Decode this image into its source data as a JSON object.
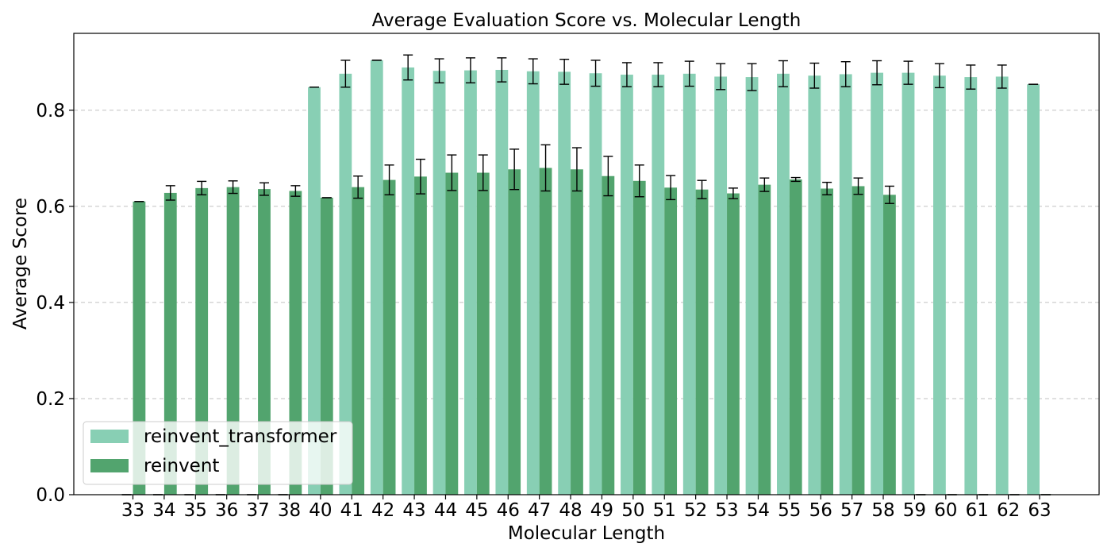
{
  "chart_data": {
    "type": "bar",
    "title": "Average Evaluation Score vs. Molecular Length",
    "xlabel": "Molecular Length",
    "ylabel": "Average Score",
    "ylim": [
      0,
      0.96
    ],
    "yticks": [
      "0.0",
      "0.2",
      "0.4",
      "0.6",
      "0.8"
    ],
    "grid": "horizontal dashed",
    "legend_position": "lower-left",
    "categories": [
      "33",
      "34",
      "35",
      "36",
      "37",
      "38",
      "40",
      "41",
      "42",
      "43",
      "44",
      "45",
      "46",
      "47",
      "48",
      "49",
      "50",
      "51",
      "52",
      "53",
      "54",
      "55",
      "56",
      "57",
      "58",
      "59",
      "60",
      "61",
      "62",
      "63"
    ],
    "series": [
      {
        "name": "reinvent_transformer",
        "color": "#88cfb4",
        "values": [
          0,
          0,
          0,
          0,
          0,
          0,
          0.848,
          0.876,
          0.904,
          0.889,
          0.882,
          0.883,
          0.884,
          0.881,
          0.88,
          0.877,
          0.874,
          0.874,
          0.876,
          0.87,
          0.869,
          0.876,
          0.872,
          0.875,
          0.878,
          0.878,
          0.872,
          0.869,
          0.87,
          0.854
        ],
        "errors": [
          0,
          0,
          0,
          0,
          0,
          0,
          0,
          0.028,
          0,
          0.026,
          0.025,
          0.026,
          0.025,
          0.026,
          0.026,
          0.027,
          0.025,
          0.025,
          0.026,
          0.027,
          0.028,
          0.027,
          0.026,
          0.026,
          0.025,
          0.024,
          0.025,
          0.025,
          0.024,
          0
        ]
      },
      {
        "name": "reinvent",
        "color": "#52a46e",
        "values": [
          0.61,
          0.628,
          0.638,
          0.64,
          0.636,
          0.632,
          0.618,
          0.64,
          0.655,
          0.662,
          0.67,
          0.67,
          0.677,
          0.68,
          0.677,
          0.663,
          0.653,
          0.639,
          0.635,
          0.627,
          0.645,
          0.656,
          0.637,
          0.642,
          0.624,
          0,
          0,
          0,
          0,
          0
        ],
        "errors": [
          0,
          0.015,
          0.014,
          0.013,
          0.013,
          0.011,
          0,
          0.023,
          0.031,
          0.036,
          0.037,
          0.037,
          0.042,
          0.048,
          0.045,
          0.041,
          0.033,
          0.025,
          0.019,
          0.011,
          0.014,
          0.004,
          0.013,
          0.017,
          0.018,
          0,
          0,
          0,
          0,
          0
        ]
      }
    ]
  }
}
